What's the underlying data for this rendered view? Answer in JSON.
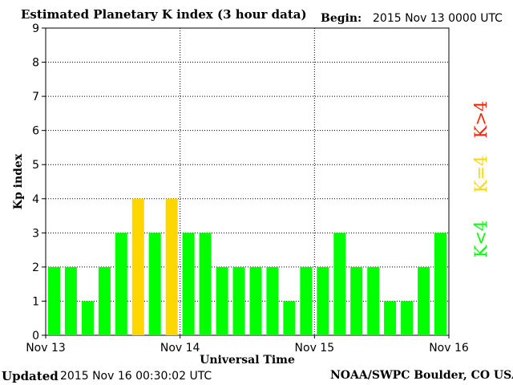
{
  "header": {
    "title": "Estimated Planetary K index (3 hour data)",
    "begin_label": "Begin:",
    "begin_value": "2015 Nov 13 0000 UTC"
  },
  "footer": {
    "updated_label": "Updated",
    "updated_value": "2015 Nov 16 00:30:02 UTC",
    "credit": "NOAA/SWPC Boulder, CO USA"
  },
  "colors": {
    "below4": "#00ff00",
    "equal4": "#ffd700",
    "above4": "#ff2200"
  },
  "legend": [
    {
      "label": "K<4",
      "color": "#00ff00"
    },
    {
      "label": "K=4",
      "color": "#ffd700"
    },
    {
      "label": "K>4",
      "color": "#ff2200"
    }
  ],
  "chart_data": {
    "type": "bar",
    "xlabel": "Universal Time",
    "ylabel": "Kp index",
    "ylim": [
      0,
      9
    ],
    "yticks": [
      "0",
      "1",
      "2",
      "3",
      "4",
      "5",
      "6",
      "7",
      "8",
      "9"
    ],
    "xticks": [
      "Nov 13",
      "Nov 14",
      "Nov 15",
      "Nov 16"
    ],
    "grid": "dotted, at each integer Kp and at each day boundary",
    "values": [
      2,
      2,
      1,
      2,
      3,
      4,
      3,
      4,
      3,
      3,
      2,
      2,
      2,
      2,
      1,
      2,
      2,
      3,
      2,
      2,
      1,
      1,
      2,
      3
    ]
  }
}
